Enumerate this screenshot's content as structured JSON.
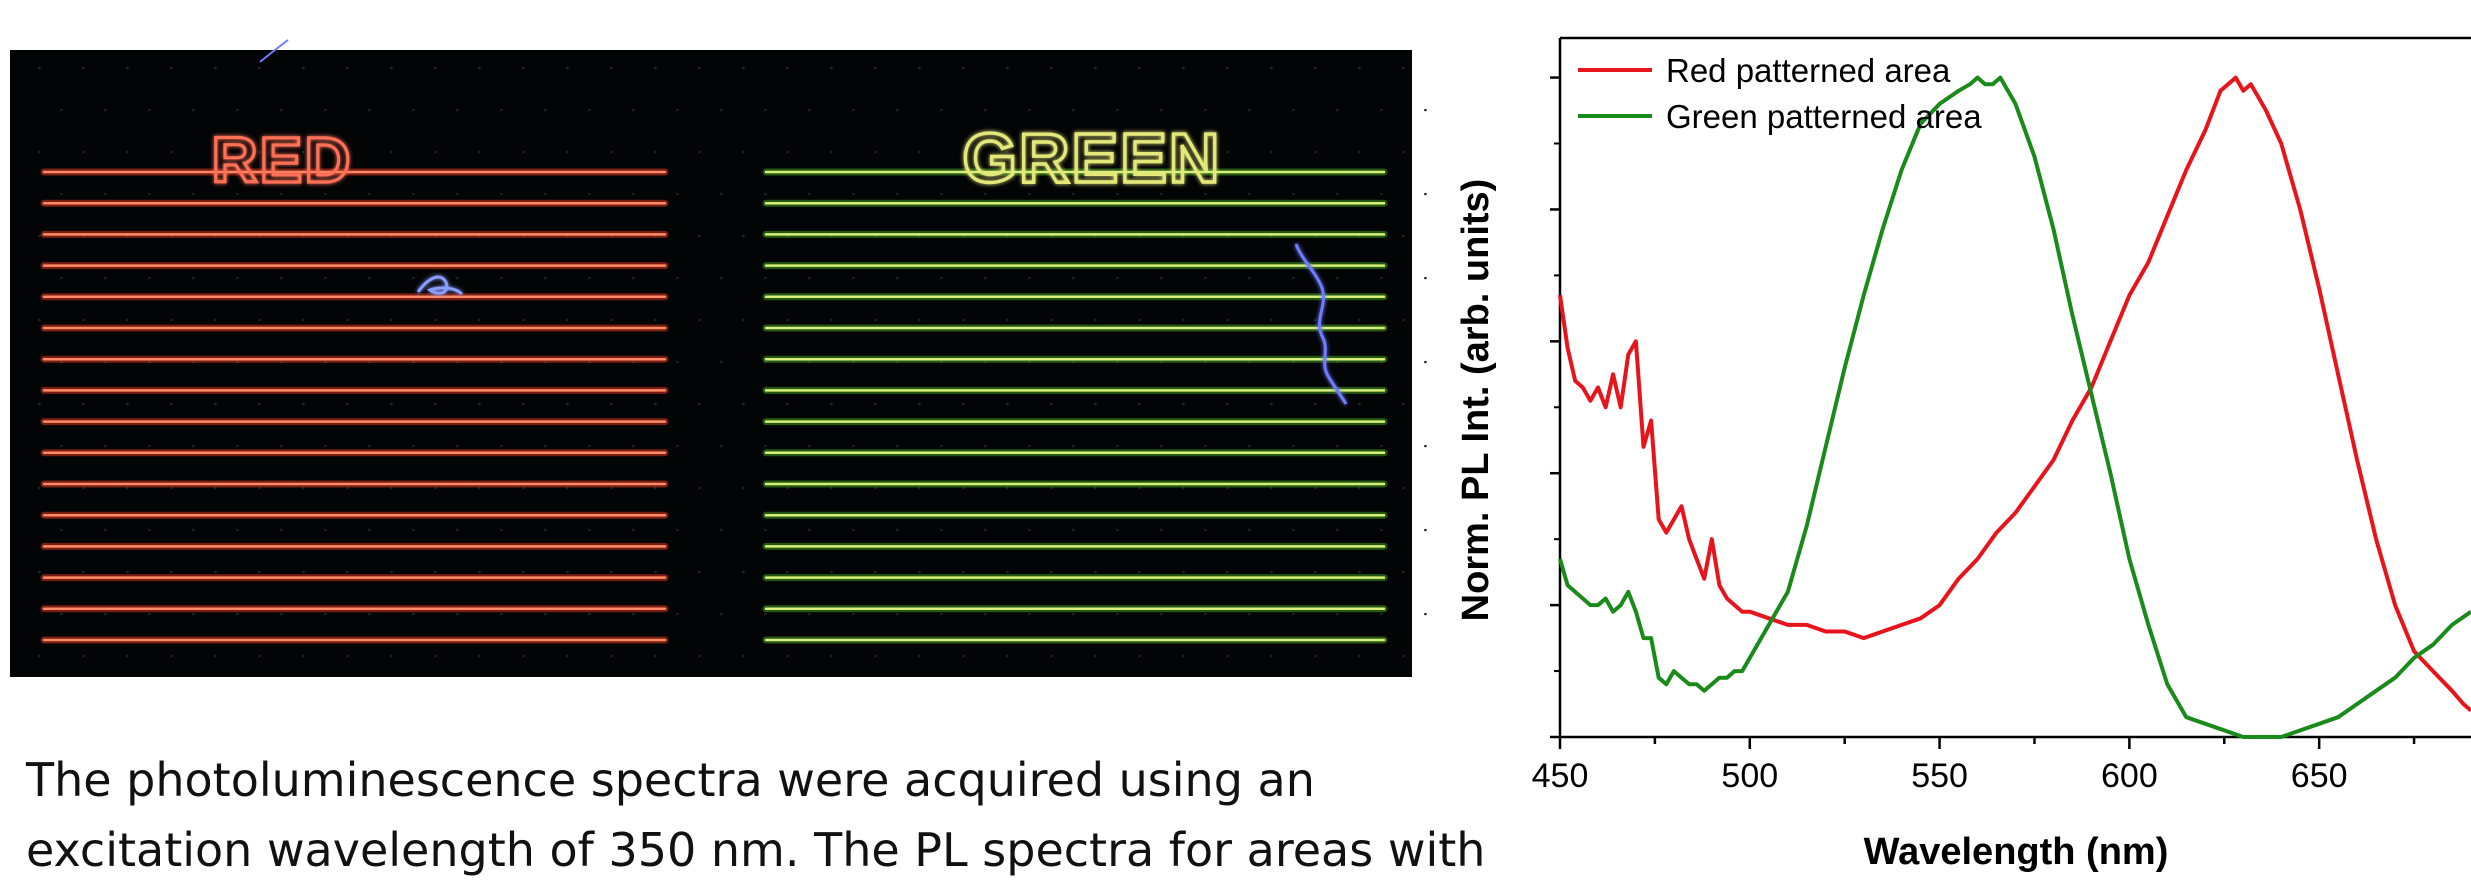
{
  "photo": {
    "label_red": "RED",
    "label_green": "GREEN",
    "colors": {
      "background": "#030405",
      "red_line": "#ff8a66",
      "red_glow": "#d8321c",
      "green_line": "#d7f07a",
      "green_glow": "#3f9b22",
      "fiber": "#6f7cff"
    },
    "line_count_per_panel": 16
  },
  "caption": {
    "line1": "The photoluminescence spectra were acquired using an",
    "line2": "excitation wavelength of 350 nm. The PL spectra for areas with"
  },
  "chart_data": {
    "type": "line",
    "xlabel": "Wavelength (nm)",
    "ylabel": "Norm. PL Int. (arb. units)",
    "xlim": [
      450,
      690
    ],
    "ylim": [
      0.0,
      1.06
    ],
    "xticks": [
      450,
      500,
      550,
      600,
      650
    ],
    "legend_position": "top-left",
    "grid": false,
    "series": [
      {
        "name": "Red patterned area",
        "color": "#e8141c",
        "x": [
          450,
          452,
          454,
          456,
          458,
          460,
          462,
          464,
          466,
          468,
          470,
          472,
          474,
          476,
          478,
          480,
          482,
          484,
          486,
          488,
          490,
          492,
          494,
          496,
          498,
          500,
          505,
          510,
          515,
          520,
          525,
          530,
          535,
          540,
          545,
          550,
          555,
          560,
          565,
          570,
          575,
          580,
          585,
          590,
          595,
          600,
          605,
          610,
          615,
          620,
          622,
          624,
          626,
          628,
          630,
          632,
          634,
          636,
          640,
          645,
          650,
          655,
          660,
          665,
          670,
          675,
          680,
          685,
          688,
          690
        ],
        "y": [
          0.67,
          0.59,
          0.54,
          0.53,
          0.51,
          0.53,
          0.5,
          0.55,
          0.5,
          0.58,
          0.6,
          0.44,
          0.48,
          0.33,
          0.31,
          0.33,
          0.35,
          0.3,
          0.27,
          0.24,
          0.3,
          0.23,
          0.21,
          0.2,
          0.19,
          0.19,
          0.18,
          0.17,
          0.17,
          0.16,
          0.16,
          0.15,
          0.16,
          0.17,
          0.18,
          0.2,
          0.24,
          0.27,
          0.31,
          0.34,
          0.38,
          0.42,
          0.48,
          0.53,
          0.6,
          0.67,
          0.72,
          0.79,
          0.86,
          0.92,
          0.95,
          0.98,
          0.99,
          1.0,
          0.98,
          0.99,
          0.97,
          0.95,
          0.9,
          0.8,
          0.68,
          0.55,
          0.42,
          0.3,
          0.2,
          0.13,
          0.1,
          0.07,
          0.05,
          0.04
        ]
      },
      {
        "name": "Green patterned area",
        "color": "#1a8a1a",
        "x": [
          450,
          452,
          454,
          456,
          458,
          460,
          462,
          464,
          466,
          468,
          470,
          472,
          474,
          476,
          478,
          480,
          482,
          484,
          486,
          488,
          490,
          492,
          494,
          496,
          498,
          500,
          505,
          510,
          515,
          520,
          525,
          530,
          535,
          540,
          545,
          550,
          555,
          558,
          560,
          562,
          564,
          566,
          568,
          570,
          575,
          580,
          585,
          590,
          595,
          600,
          605,
          610,
          615,
          620,
          625,
          630,
          635,
          640,
          645,
          650,
          655,
          660,
          665,
          670,
          675,
          680,
          685,
          690
        ],
        "y": [
          0.27,
          0.23,
          0.22,
          0.21,
          0.2,
          0.2,
          0.21,
          0.19,
          0.2,
          0.22,
          0.19,
          0.15,
          0.15,
          0.09,
          0.08,
          0.1,
          0.09,
          0.08,
          0.08,
          0.07,
          0.08,
          0.09,
          0.09,
          0.1,
          0.1,
          0.12,
          0.17,
          0.22,
          0.32,
          0.44,
          0.56,
          0.67,
          0.77,
          0.86,
          0.93,
          0.96,
          0.98,
          0.99,
          1.0,
          0.99,
          0.99,
          1.0,
          0.98,
          0.96,
          0.88,
          0.77,
          0.64,
          0.52,
          0.4,
          0.27,
          0.17,
          0.08,
          0.03,
          0.02,
          0.01,
          0.0,
          0.0,
          0.0,
          0.01,
          0.02,
          0.03,
          0.05,
          0.07,
          0.09,
          0.12,
          0.14,
          0.17,
          0.19
        ]
      }
    ]
  }
}
